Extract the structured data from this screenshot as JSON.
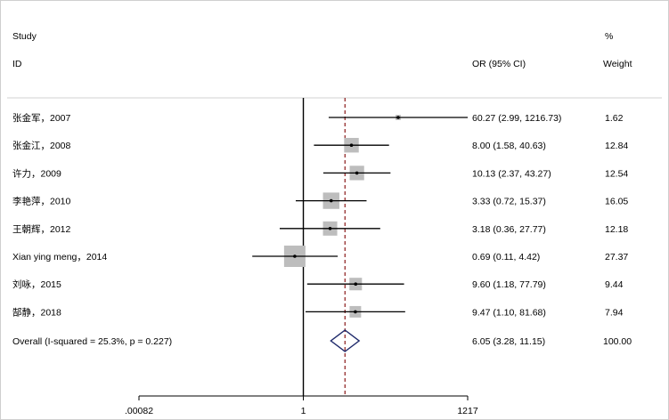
{
  "header": {
    "col1_line1": "Study",
    "col1_line2": "ID",
    "col2_line2": "OR (95% CI)",
    "col3_line1": "%",
    "col3_line2": "Weight"
  },
  "colors": {
    "box": "#bdbdbd",
    "ci_line": "#000000",
    "reference_line": "#000000",
    "overall_line": "#8b1a1a",
    "diamond": "#1f2a6b",
    "frame": "#cfcfcf"
  },
  "chart_data": {
    "type": "forest",
    "x_scale": "log",
    "xlim": [
      0.00082,
      1217
    ],
    "x_ticks": [
      {
        "value": 0.00082,
        "label": ".00082"
      },
      {
        "value": 1,
        "label": "1"
      },
      {
        "value": 1217,
        "label": "1217"
      }
    ],
    "reference_value": 1,
    "studies": [
      {
        "label": "张金军，2007",
        "or": 60.27,
        "lo": 2.99,
        "hi": 1216.73,
        "ci_text": "60.27 (2.99, 1216.73)",
        "weight": 1.62,
        "weight_text": "1.62"
      },
      {
        "label": "张金江，2008",
        "or": 8.0,
        "lo": 1.58,
        "hi": 40.63,
        "ci_text": "8.00 (1.58, 40.63)",
        "weight": 12.84,
        "weight_text": "12.84"
      },
      {
        "label": "许力，2009",
        "or": 10.13,
        "lo": 2.37,
        "hi": 43.27,
        "ci_text": "10.13 (2.37, 43.27)",
        "weight": 12.54,
        "weight_text": "12.54"
      },
      {
        "label": "李艳萍，2010",
        "or": 3.33,
        "lo": 0.72,
        "hi": 15.37,
        "ci_text": "3.33 (0.72, 15.37)",
        "weight": 16.05,
        "weight_text": "16.05"
      },
      {
        "label": "王朝辉，2012",
        "or": 3.18,
        "lo": 0.36,
        "hi": 27.77,
        "ci_text": "3.18 (0.36, 27.77)",
        "weight": 12.18,
        "weight_text": "12.18"
      },
      {
        "label": "Xian ying meng，2014",
        "or": 0.69,
        "lo": 0.11,
        "hi": 4.42,
        "ci_text": "0.69 (0.11, 4.42)",
        "weight": 27.37,
        "weight_text": "27.37"
      },
      {
        "label": "刘咏，2015",
        "or": 9.6,
        "lo": 1.18,
        "hi": 77.79,
        "ci_text": "9.60 (1.18, 77.79)",
        "weight": 9.44,
        "weight_text": "9.44"
      },
      {
        "label": "郜静，2018",
        "or": 9.47,
        "lo": 1.1,
        "hi": 81.68,
        "ci_text": "9.47 (1.10, 81.68)",
        "weight": 7.94,
        "weight_text": "7.94"
      }
    ],
    "overall": {
      "label": "Overall  (I-squared = 25.3%, p = 0.227)",
      "or": 6.05,
      "lo": 3.28,
      "hi": 11.15,
      "ci_text": "6.05 (3.28, 11.15)",
      "weight_text": "100.00"
    }
  }
}
